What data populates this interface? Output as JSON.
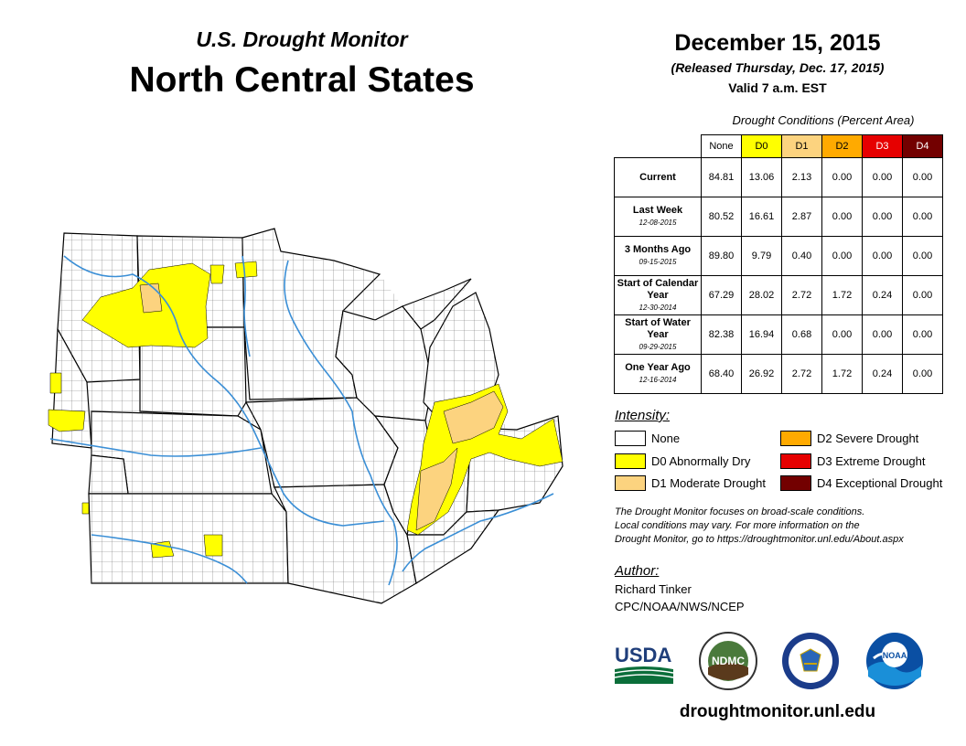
{
  "header": {
    "subtitle": "U.S. Drought Monitor",
    "region": "North Central States",
    "date": "December 15, 2015",
    "released": "(Released Thursday, Dec. 17, 2015)",
    "valid": "Valid 7 a.m. EST"
  },
  "table": {
    "caption": "Drought Conditions (Percent Area)",
    "columns": [
      "None",
      "D0",
      "D1",
      "D2",
      "D3",
      "D4"
    ],
    "column_colors": [
      "#ffffff",
      "#ffff00",
      "#fcd37f",
      "#ffaa00",
      "#e60000",
      "#730000"
    ],
    "rows": [
      {
        "label": "Current",
        "date": "",
        "values": [
          "84.81",
          "13.06",
          "2.13",
          "0.00",
          "0.00",
          "0.00"
        ]
      },
      {
        "label": "Last Week",
        "date": "12-08-2015",
        "values": [
          "80.52",
          "16.61",
          "2.87",
          "0.00",
          "0.00",
          "0.00"
        ]
      },
      {
        "label": "3 Months Ago",
        "date": "09-15-2015",
        "values": [
          "89.80",
          "9.79",
          "0.40",
          "0.00",
          "0.00",
          "0.00"
        ]
      },
      {
        "label": "Start of Calendar Year",
        "date": "12-30-2014",
        "values": [
          "67.29",
          "28.02",
          "2.72",
          "1.72",
          "0.24",
          "0.00"
        ]
      },
      {
        "label": "Start of Water Year",
        "date": "09-29-2015",
        "values": [
          "82.38",
          "16.94",
          "0.68",
          "0.00",
          "0.00",
          "0.00"
        ]
      },
      {
        "label": "One Year Ago",
        "date": "12-16-2014",
        "values": [
          "68.40",
          "26.92",
          "2.72",
          "1.72",
          "0.24",
          "0.00"
        ]
      }
    ]
  },
  "legend": {
    "title": "Intensity:",
    "items": [
      {
        "label": "None",
        "color": "#ffffff"
      },
      {
        "label": "D0 Abnormally Dry",
        "color": "#ffff00"
      },
      {
        "label": "D1 Moderate Drought",
        "color": "#fcd37f"
      },
      {
        "label": "D2 Severe Drought",
        "color": "#ffaa00"
      },
      {
        "label": "D3 Extreme Drought",
        "color": "#e60000"
      },
      {
        "label": "D4 Exceptional Drought",
        "color": "#730000"
      }
    ]
  },
  "note": {
    "line1": "The Drought Monitor focuses on broad-scale conditions.",
    "line2": "Local conditions may vary. For more information on the",
    "line3": "Drought Monitor, go to https://droughtmonitor.unl.edu/About.aspx"
  },
  "author": {
    "title": "Author:",
    "name": "Richard Tinker",
    "org": "CPC/NOAA/NWS/NCEP"
  },
  "logos": {
    "usda": "USDA",
    "ndmc": "NDMC",
    "noaa": "NOAA"
  },
  "website": "droughtmonitor.unl.edu"
}
